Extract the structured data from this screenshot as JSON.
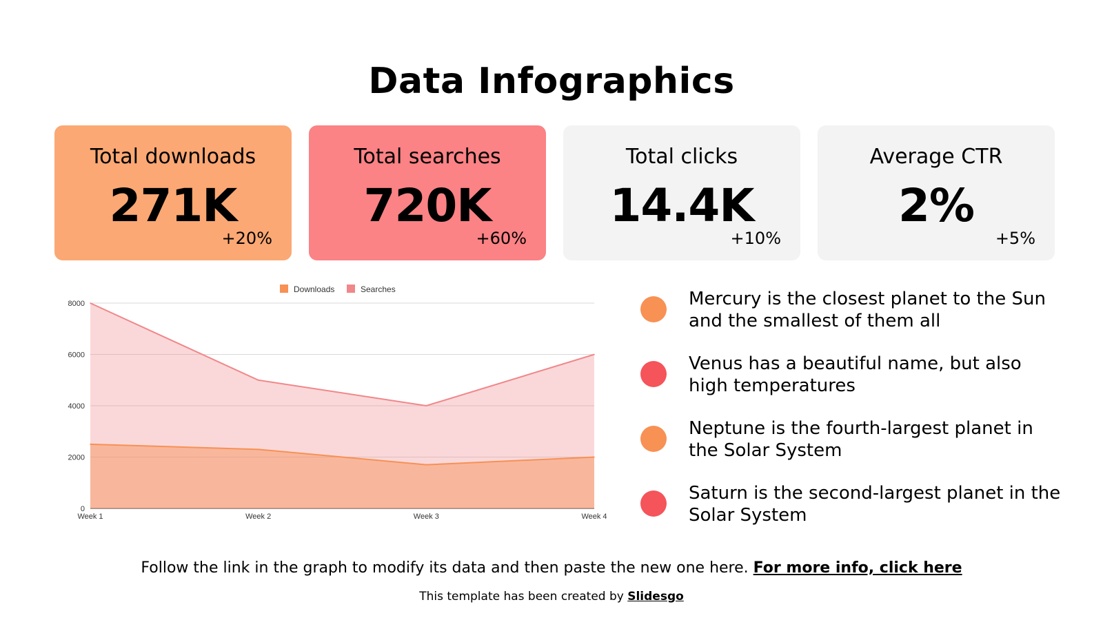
{
  "title": "Data Infographics",
  "cards": [
    {
      "label": "Total downloads",
      "value": "271K",
      "delta": "+20%",
      "color": "#FBA874"
    },
    {
      "label": "Total searches",
      "value": "720K",
      "delta": "+60%",
      "color": "#FB8285"
    },
    {
      "label": "Total clicks",
      "value": "14.4K",
      "delta": "+10%",
      "color": "#F3F3F3"
    },
    {
      "label": "Average CTR",
      "value": "2%",
      "delta": "+5%",
      "color": "#F3F3F3"
    }
  ],
  "chart_data": {
    "type": "area",
    "categories": [
      "Week 1",
      "Week 2",
      "Week 3",
      "Week 4"
    ],
    "series": [
      {
        "name": "Downloads",
        "values": [
          2500,
          2300,
          1700,
          2000
        ],
        "color": "#F79154"
      },
      {
        "name": "Searches",
        "values": [
          8000,
          5000,
          4000,
          6000
        ],
        "color": "#F0878A"
      }
    ],
    "yticks": [
      "0",
      "2000",
      "4000",
      "6000",
      "8000"
    ],
    "ylim": [
      0,
      8000
    ],
    "legend": "top",
    "grid": true
  },
  "bullets": [
    {
      "text": "Mercury is the closest planet to the Sun and the smallest of them all",
      "color": "#F79154"
    },
    {
      "text": "Venus has a beautiful name, but also high temperatures",
      "color": "#F4545A"
    },
    {
      "text": "Neptune is the fourth-largest planet in the Solar System",
      "color": "#F79154"
    },
    {
      "text": "Saturn is the second-largest planet in the Solar System",
      "color": "#F4545A"
    }
  ],
  "footer": {
    "text": "Follow the link in the graph to modify its data and then paste the new one here. ",
    "link": "For more info, click here"
  },
  "credit": {
    "text": "This template has been created by ",
    "link": "Slidesgo"
  }
}
